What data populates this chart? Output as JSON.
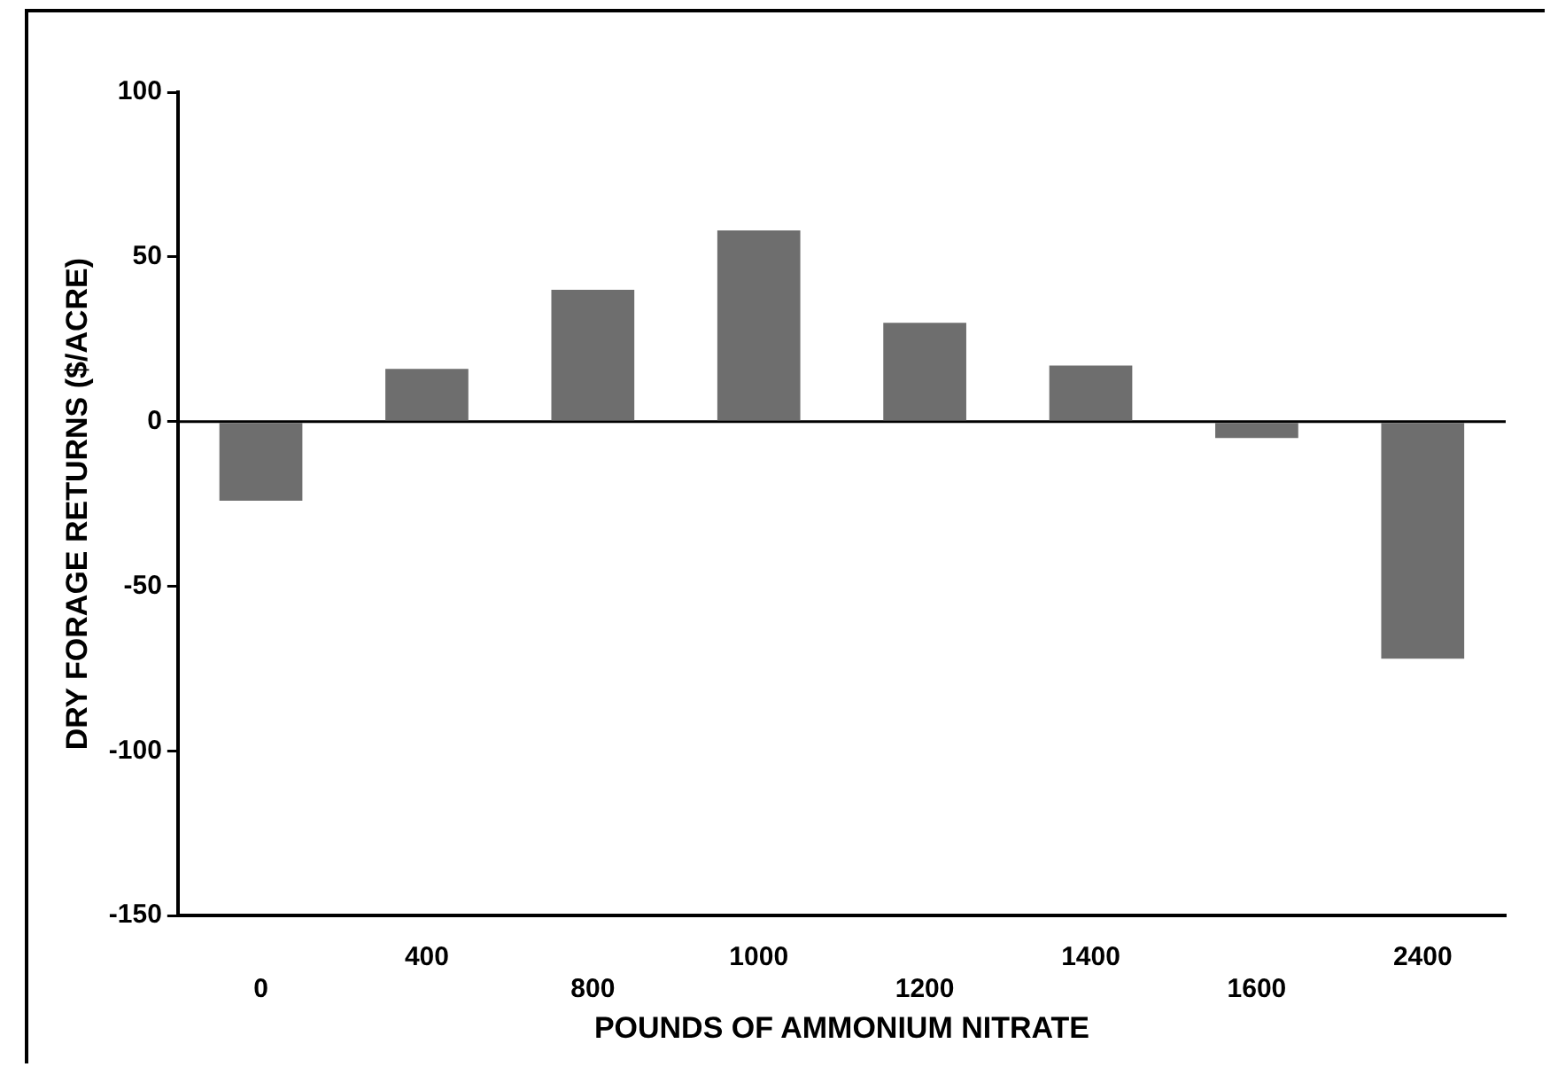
{
  "chart_data": {
    "type": "bar",
    "xlabel": "POUNDS OF AMMONIUM NITRATE",
    "ylabel": "DRY FORAGE RETURNS ($/ACRE)",
    "categories": [
      "0",
      "400",
      "800",
      "1000",
      "1200",
      "1400",
      "1600",
      "2400"
    ],
    "values": [
      -24,
      16,
      40,
      58,
      30,
      17,
      -5,
      -72
    ],
    "color": "#6e6e6e",
    "ref_lines": [
      {
        "axis": "y",
        "value": 0,
        "color": "#000000"
      }
    ],
    "ylim": [
      -150,
      100
    ],
    "yticks": [
      -150,
      -100,
      -50,
      0,
      50,
      100
    ],
    "grid": false
  }
}
